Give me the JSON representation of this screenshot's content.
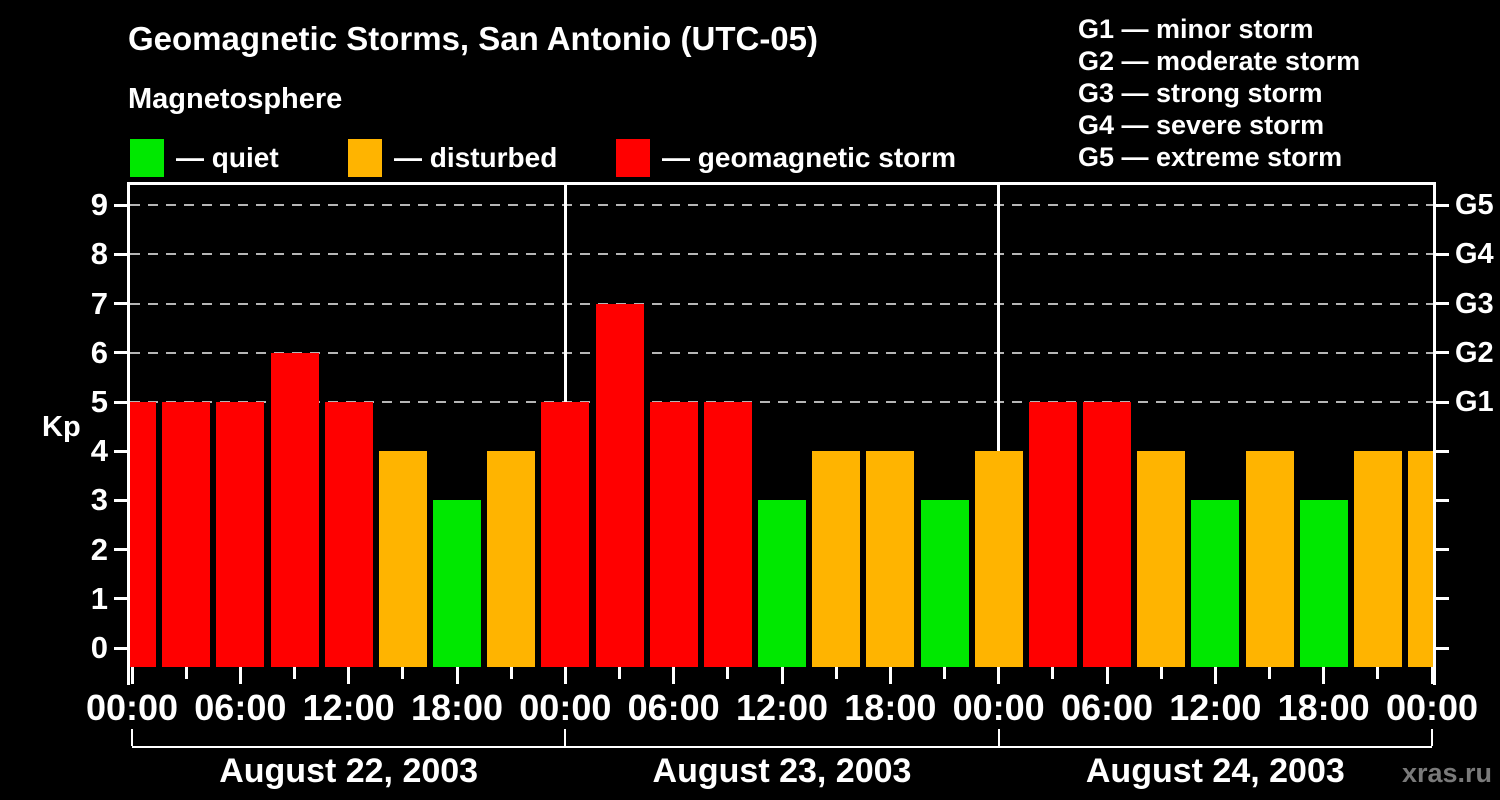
{
  "watermark": "xras.ru",
  "chart_data": {
    "type": "bar",
    "title": "Geomagnetic Storms, San Antonio (UTC-05)",
    "subtitle": "Magnetosphere",
    "ylabel": "Kp",
    "ylim": [
      0,
      9
    ],
    "y_ticks": [
      0,
      1,
      2,
      3,
      4,
      5,
      6,
      7,
      8,
      9
    ],
    "gridlines_at_kp": [
      5,
      6,
      7,
      8,
      9
    ],
    "legend_position": "top-left",
    "legend": [
      {
        "label": "— quiet",
        "level": "quiet"
      },
      {
        "label": "— disturbed",
        "level": "disturbed"
      },
      {
        "label": "— geomagnetic storm",
        "level": "storm"
      }
    ],
    "colors": {
      "quiet": "#00e800",
      "disturbed": "#ffb400",
      "storm": "#ff0000"
    },
    "right_axis": [
      {
        "kp": 5,
        "label": "G1"
      },
      {
        "kp": 6,
        "label": "G2"
      },
      {
        "kp": 7,
        "label": "G3"
      },
      {
        "kp": 8,
        "label": "G4"
      },
      {
        "kp": 9,
        "label": "G5"
      }
    ],
    "storm_scale_legend": [
      "G1 — minor storm",
      "G2 — moderate storm",
      "G3 — strong storm",
      "G4 — severe storm",
      "G5 — extreme storm"
    ],
    "x_axis": {
      "hours_span": 72,
      "major_tick_every_hours": 6,
      "minor_tick_every_hours": 3,
      "major_labels": [
        "00:00",
        "06:00",
        "12:00",
        "18:00",
        "00:00",
        "06:00",
        "12:00",
        "18:00",
        "00:00",
        "06:00",
        "12:00",
        "18:00",
        "00:00"
      ]
    },
    "days": [
      {
        "label": "August 22, 2003",
        "start_hour": 0,
        "end_hour": 24
      },
      {
        "label": "August 23, 2003",
        "start_hour": 24,
        "end_hour": 48
      },
      {
        "label": "August 24, 2003",
        "start_hour": 48,
        "end_hour": 72
      }
    ],
    "bar_interval_hours": 3,
    "bars": [
      {
        "hour": 0,
        "kp": 5,
        "level": "storm"
      },
      {
        "hour": 3,
        "kp": 5,
        "level": "storm"
      },
      {
        "hour": 6,
        "kp": 5,
        "level": "storm"
      },
      {
        "hour": 9,
        "kp": 6,
        "level": "storm"
      },
      {
        "hour": 12,
        "kp": 5,
        "level": "storm"
      },
      {
        "hour": 15,
        "kp": 4,
        "level": "disturbed"
      },
      {
        "hour": 18,
        "kp": 3,
        "level": "quiet"
      },
      {
        "hour": 21,
        "kp": 4,
        "level": "disturbed"
      },
      {
        "hour": 24,
        "kp": 5,
        "level": "storm"
      },
      {
        "hour": 27,
        "kp": 7,
        "level": "storm"
      },
      {
        "hour": 30,
        "kp": 5,
        "level": "storm"
      },
      {
        "hour": 33,
        "kp": 5,
        "level": "storm"
      },
      {
        "hour": 36,
        "kp": 3,
        "level": "quiet"
      },
      {
        "hour": 39,
        "kp": 4,
        "level": "disturbed"
      },
      {
        "hour": 42,
        "kp": 4,
        "level": "disturbed"
      },
      {
        "hour": 45,
        "kp": 3,
        "level": "quiet"
      },
      {
        "hour": 48,
        "kp": 4,
        "level": "disturbed"
      },
      {
        "hour": 51,
        "kp": 5,
        "level": "storm"
      },
      {
        "hour": 54,
        "kp": 5,
        "level": "storm"
      },
      {
        "hour": 57,
        "kp": 4,
        "level": "disturbed"
      },
      {
        "hour": 60,
        "kp": 3,
        "level": "quiet"
      },
      {
        "hour": 63,
        "kp": 4,
        "level": "disturbed"
      },
      {
        "hour": 66,
        "kp": 3,
        "level": "quiet"
      },
      {
        "hour": 69,
        "kp": 4,
        "level": "disturbed"
      },
      {
        "hour": 72,
        "kp": 4,
        "level": "disturbed"
      }
    ]
  }
}
